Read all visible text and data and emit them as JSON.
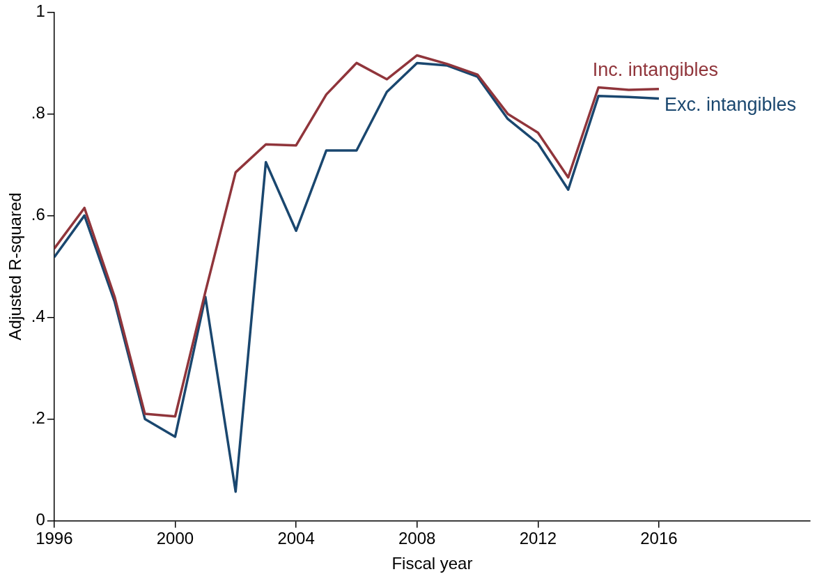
{
  "chart_data": {
    "type": "line",
    "xlabel": "Fiscal year",
    "ylabel": "Adjusted R-squared",
    "x": [
      1996,
      1997,
      1998,
      1999,
      2000,
      2001,
      2002,
      2003,
      2004,
      2005,
      2006,
      2007,
      2008,
      2009,
      2010,
      2011,
      2012,
      2013,
      2014,
      2015,
      2016
    ],
    "series": [
      {
        "name": "Inc. intangibles",
        "color": "#90353b",
        "values": [
          0.535,
          0.615,
          0.44,
          0.21,
          0.205,
          0.45,
          0.685,
          0.74,
          0.738,
          0.838,
          0.9,
          0.868,
          0.915,
          0.898,
          0.877,
          0.8,
          0.763,
          0.675,
          0.852,
          0.847,
          0.849
        ]
      },
      {
        "name": "Exc. intangibles",
        "color": "#1a476f",
        "values": [
          0.518,
          0.6,
          0.43,
          0.2,
          0.165,
          0.44,
          0.057,
          0.705,
          0.57,
          0.728,
          0.728,
          0.843,
          0.9,
          0.895,
          0.873,
          0.79,
          0.742,
          0.651,
          0.835,
          0.833,
          0.83
        ]
      }
    ],
    "xlim": [
      1996,
      2021
    ],
    "xticks": [
      1996,
      2000,
      2004,
      2008,
      2012,
      2016
    ],
    "ylim": [
      0,
      1
    ],
    "yticks": [
      0,
      {
        "value": 0.2,
        "label": ".2"
      },
      {
        "value": 0.4,
        "label": ".4"
      },
      {
        "value": 0.6,
        "label": ".6"
      },
      {
        "value": 0.8,
        "label": ".8"
      },
      1
    ],
    "grid": false,
    "legend": false,
    "marker": "none",
    "line_style": "solid"
  }
}
